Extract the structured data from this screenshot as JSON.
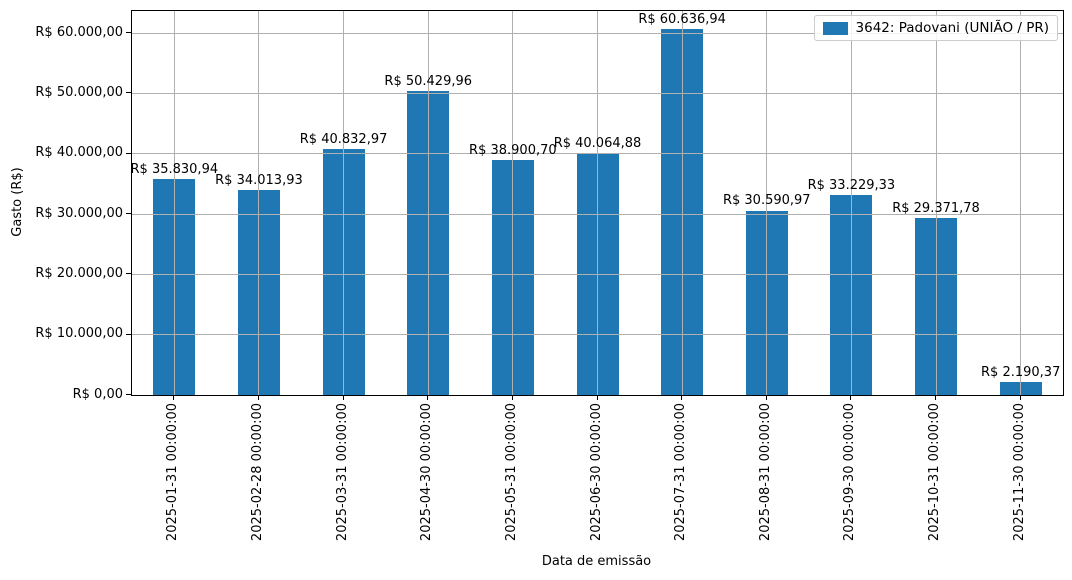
{
  "chart_data": {
    "type": "bar",
    "title": "",
    "xlabel": "Data de emissão",
    "ylabel": "Gasto (R$)",
    "categories": [
      "2025-01-31 00:00:00",
      "2025-02-28 00:00:00",
      "2025-03-31 00:00:00",
      "2025-04-30 00:00:00",
      "2025-05-31 00:00:00",
      "2025-06-30 00:00:00",
      "2025-07-31 00:00:00",
      "2025-08-31 00:00:00",
      "2025-09-30 00:00:00",
      "2025-10-31 00:00:00",
      "2025-11-30 00:00:00"
    ],
    "values": [
      35830.94,
      34013.93,
      40832.97,
      50429.96,
      38900.7,
      40064.88,
      60636.94,
      30590.97,
      33229.33,
      29371.78,
      2190.37
    ],
    "bar_labels": [
      "R$ 35.830,94",
      "R$ 34.013,93",
      "R$ 40.832,97",
      "R$ 50.429,96",
      "R$ 38.900,70",
      "R$ 40.064,88",
      "R$ 60.636,94",
      "R$ 30.590,97",
      "R$ 33.229,33",
      "R$ 29.371,78",
      "R$ 2.190,37"
    ],
    "y_ticks": {
      "values": [
        0,
        10000,
        20000,
        30000,
        40000,
        50000,
        60000
      ],
      "labels": [
        "R$ 0,00",
        "R$ 10.000,00",
        "R$ 20.000,00",
        "R$ 30.000,00",
        "R$ 40.000,00",
        "R$ 50.000,00",
        "R$ 60.000,00"
      ]
    },
    "ylim": [
      0,
      63669
    ],
    "grid": true,
    "legend": {
      "label": "3642: Padovani (UNIÃO / PR)",
      "position": "upper right"
    },
    "colors": {
      "bar": "#1f77b4",
      "grid": "#b0b0b0",
      "spine": "#000000",
      "text": "#000000",
      "legend_border": "#cccccc",
      "background": "#ffffff"
    }
  }
}
